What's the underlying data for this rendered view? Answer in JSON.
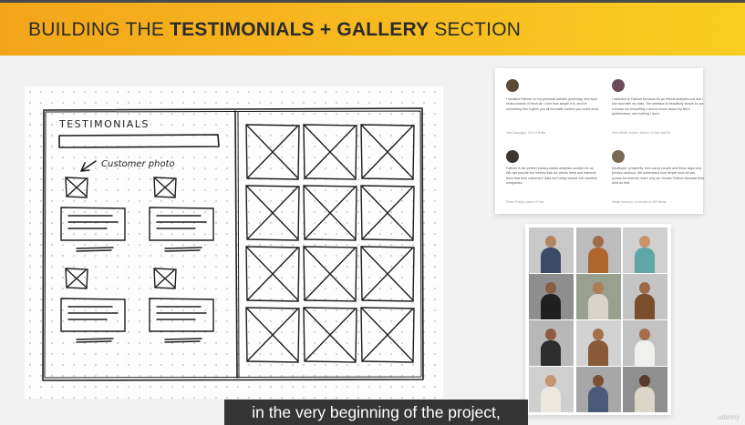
{
  "banner": {
    "title_prefix": "BUILDING THE ",
    "title_bold": "TESTIMONIALS + GALLERY",
    "title_suffix": " SECTION"
  },
  "sketch": {
    "heading": "TESTIMONIALS",
    "photo_note": "Customer photo"
  },
  "testimonials": [
    {
      "quote": "I installed Fathom on my personal website yesterday, and wow, what a breath of fresh air. I love how simple it is, and for something free it gives you all the traffic metrics you could need.",
      "name": "Joel Gascoigne, CEO of Buffer",
      "avatar_color": "#5b4a3a"
    },
    {
      "quote": "I switched to Fathom because it's an ethical analytics tool that I can trust with my data. The interface is beautifully simple to use: it shows me everything I need to know about my site's performance, and nothing I don't.",
      "name": "Sheri Marks, creator, director of Oven and Bit",
      "avatar_color": "#6b4b5a"
    },
    {
      "quote": "Fathom is the perfect privacy-based analytics solution for us. We can provide the metrics that our clients need and reassure them that their customers' data isn't being shared with faceless companies.",
      "name": "Simon Phelps, owner of Hula",
      "avatar_color": "#3f3530"
    },
    {
      "quote": "Developer: prosperity: tech-savvy people and these days very privacy-cautious. We understand how simple tools let you across the internet: that's why we choose Fathom because their dont do that.",
      "name": "Stefan Hassmpl, co-founder of JEP Media",
      "avatar_color": "#7a6a55"
    }
  ],
  "gallery": {
    "photos": [
      {
        "bg": "#c9c9c9",
        "skin": "#b38663",
        "shirt": "#3b4a66"
      },
      {
        "bg": "#bdbdbd",
        "skin": "#a06d4a",
        "shirt": "#b0652f"
      },
      {
        "bg": "#d0d0d0",
        "skin": "#c7936b",
        "shirt": "#5ea6a8"
      },
      {
        "bg": "#8e8e8e",
        "skin": "#8a5b3e",
        "shirt": "#1f1f1f"
      },
      {
        "bg": "#9aa08e",
        "skin": "#b07b5a",
        "shirt": "#d8d4cc"
      },
      {
        "bg": "#c4c4c4",
        "skin": "#9c6a48",
        "shirt": "#7a4e2a"
      },
      {
        "bg": "#b8b8b8",
        "skin": "#8e5c40",
        "shirt": "#2d2d2d"
      },
      {
        "bg": "#d2d2d2",
        "skin": "#a4704c",
        "shirt": "#8a5a38"
      },
      {
        "bg": "#c2c2c2",
        "skin": "#a86e4c",
        "shirt": "#f0f0ee"
      },
      {
        "bg": "#cfcfcf",
        "skin": "#c59472",
        "shirt": "#ece8e0"
      },
      {
        "bg": "#a7a7a7",
        "skin": "#7a4f34",
        "shirt": "#4a5a78"
      },
      {
        "bg": "#8f8f8f",
        "skin": "#5a3a28",
        "shirt": "#dcd6c8"
      }
    ]
  },
  "caption": "in the very beginning of the project,",
  "watermark": "udemy",
  "colors": {
    "banner_start": "#f3a51a",
    "banner_end": "#f9cd22",
    "ink": "#222222"
  }
}
